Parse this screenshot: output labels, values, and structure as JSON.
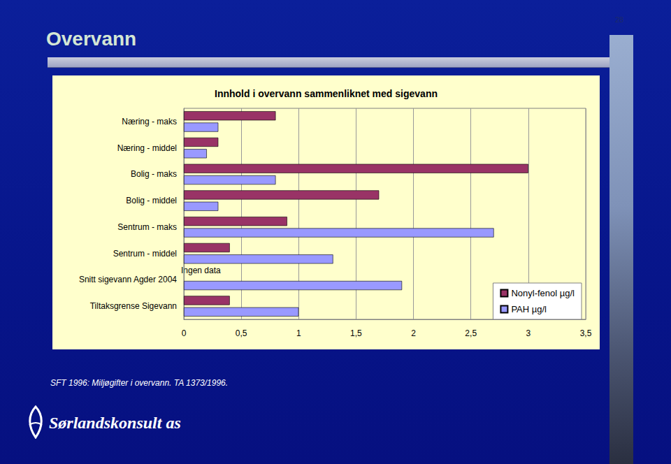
{
  "slide": {
    "title": "Overvann",
    "page": "28",
    "source": "SFT 1996: Miljøgifter i overvann. TA 1373/1996.",
    "logo": "Sørlandskonsult as"
  },
  "chart_data": {
    "type": "bar",
    "orientation": "horizontal",
    "title": "Innhold i overvann sammenliknet med sigevann",
    "categories": [
      "Næring - maks",
      "Næring - middel",
      "Bolig - maks",
      "Bolig - middel",
      "Sentrum - maks",
      "Sentrum - middel",
      "Snitt sigevann Agder 2004",
      "Tiltaksgrense Sigevann"
    ],
    "series": [
      {
        "name": "Nonyl-fenol µg/l",
        "color": "#993366",
        "values": [
          0.8,
          0.3,
          3.0,
          1.7,
          0.9,
          0.4,
          null,
          0.4
        ]
      },
      {
        "name": "PAH µg/l",
        "color": "#9999ff",
        "values": [
          0.3,
          0.2,
          0.8,
          0.3,
          2.7,
          1.3,
          1.9,
          1.0
        ]
      }
    ],
    "annotations": [
      {
        "text": "Ingen data",
        "category": "Snitt sigevann Agder 2004"
      }
    ],
    "xlim": [
      0,
      3.5
    ],
    "xticks": [
      0,
      {
        "value": 0.5,
        "label": "0,5"
      },
      1,
      {
        "value": 1.5,
        "label": "1,5"
      },
      2,
      {
        "value": 2.5,
        "label": "2,5"
      },
      3,
      {
        "value": 3.5,
        "label": "3,5"
      }
    ],
    "grid": true,
    "legend": "lower right"
  }
}
